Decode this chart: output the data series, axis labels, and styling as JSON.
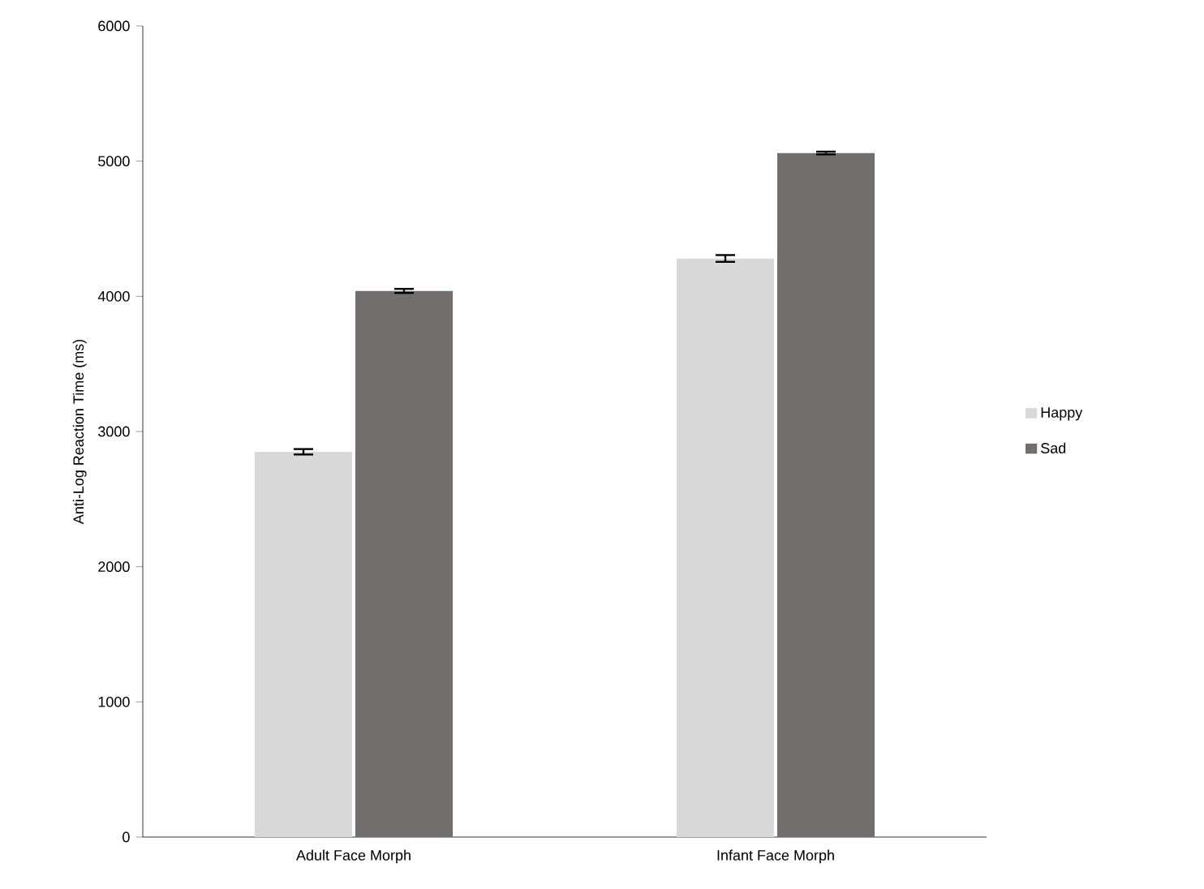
{
  "chart_data": {
    "type": "bar",
    "ylabel": "Anti-Log Reaction Time (ms)",
    "categories": [
      "Adult Face Morph",
      "Infant Face Morph"
    ],
    "series": [
      {
        "name": "Happy",
        "color": "#d9d9d9",
        "values": [
          2850,
          4280
        ],
        "errors": [
          20,
          25
        ]
      },
      {
        "name": "Sad",
        "color": "#736e6e",
        "values": [
          4040,
          5060
        ],
        "errors": [
          15,
          10
        ]
      }
    ],
    "ylim": [
      0,
      6000
    ],
    "yticks": [
      0,
      1000,
      2000,
      3000,
      4000,
      5000,
      6000
    ],
    "grid": false,
    "legend": "right"
  }
}
